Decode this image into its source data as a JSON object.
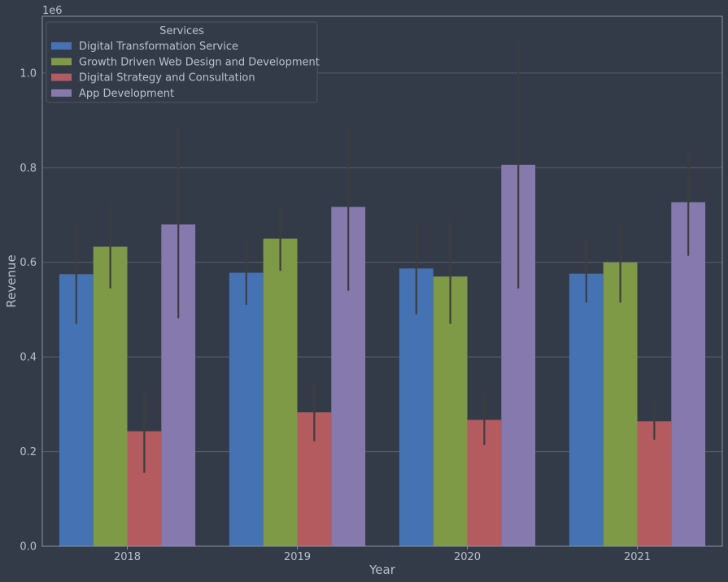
{
  "chart_data": {
    "type": "bar",
    "categories": [
      "2018",
      "2019",
      "2020",
      "2021"
    ],
    "series": [
      {
        "name": "Digital Transformation Service",
        "color": "#4472b3",
        "values": [
          575000,
          578000,
          587000,
          576000
        ],
        "err_low": [
          470000,
          510000,
          490000,
          515000
        ],
        "err_high": [
          675000,
          648000,
          683000,
          646000
        ]
      },
      {
        "name": "Growth Driven Web Design and Development",
        "color": "#7e9a47",
        "values": [
          633000,
          650000,
          570000,
          600000
        ],
        "err_low": [
          545000,
          582000,
          470000,
          515000
        ],
        "err_high": [
          723000,
          717000,
          690000,
          686000
        ]
      },
      {
        "name": "Digital Strategy and Consultation",
        "color": "#b45b5f",
        "values": [
          243000,
          283000,
          267000,
          264000
        ],
        "err_low": [
          155000,
          222000,
          214000,
          225000
        ],
        "err_high": [
          330000,
          340000,
          325000,
          308000
        ]
      },
      {
        "name": "App Development",
        "color": "#8679ad",
        "values": [
          680000,
          717000,
          806000,
          727000
        ],
        "err_low": [
          482000,
          540000,
          545000,
          614000
        ],
        "err_high": [
          880000,
          885000,
          1070000,
          837000
        ]
      }
    ],
    "xlabel": "Year",
    "ylabel": "Revenue",
    "offset_text": "1e6",
    "ylim": [
      0,
      1120000
    ],
    "yticks": [
      0,
      200000,
      400000,
      600000,
      800000,
      1000000
    ],
    "ytick_labels": [
      "0.0",
      "0.2",
      "0.4",
      "0.6",
      "0.8",
      "1.0"
    ],
    "legend_title": "Services",
    "legend_position": "top-left",
    "grid": true,
    "colors": {
      "background": "#343b48",
      "grid": "#56606e",
      "text": "#b8c0cf",
      "errorbar": "#3d3d3d"
    }
  }
}
